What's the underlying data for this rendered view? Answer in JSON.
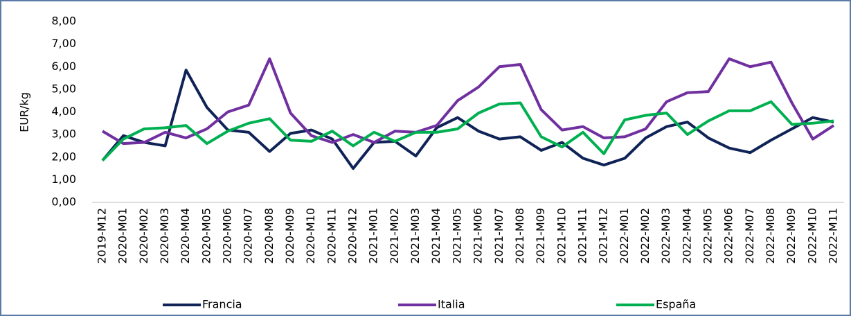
{
  "chart_data": {
    "type": "line",
    "y_label": "EUR/kg",
    "categories": [
      "2019-M12",
      "2020-M01",
      "2020-M02",
      "2020-M03",
      "2020-M04",
      "2020-M05",
      "2020-M06",
      "2020-M07",
      "2020-M08",
      "2020-M09",
      "2020-M10",
      "2020-M11",
      "2020-M12",
      "2021-M01",
      "2021-M02",
      "2021-M03",
      "2021-M04",
      "2021-M05",
      "2021-M06",
      "2021-M07",
      "2021-M08",
      "2021-M09",
      "2021-M10",
      "2021-M11",
      "2021-M12",
      "2022-M01",
      "2022-M02",
      "2022-M03",
      "2022-M04",
      "2022-M05",
      "2022-M06",
      "2022-M07",
      "2022-M08",
      "2022-M09",
      "2022-M10",
      "2022-M11"
    ],
    "series": [
      {
        "name": "Francia",
        "color": "#0f2357",
        "values": [
          1.85,
          2.95,
          2.65,
          2.5,
          5.85,
          4.2,
          3.2,
          3.1,
          2.25,
          3.05,
          3.2,
          2.8,
          1.5,
          2.65,
          2.7,
          2.05,
          3.3,
          3.75,
          3.15,
          2.8,
          2.9,
          2.3,
          2.65,
          1.95,
          1.65,
          1.95,
          2.85,
          3.35,
          3.55,
          2.85,
          2.4,
          2.2,
          2.75,
          3.25,
          3.75,
          3.55
        ]
      },
      {
        "name": "Italia",
        "color": "#7030a0",
        "values": [
          3.15,
          2.6,
          2.65,
          3.1,
          2.85,
          3.25,
          4.0,
          4.3,
          6.35,
          3.95,
          2.95,
          2.65,
          3.0,
          2.65,
          3.15,
          3.1,
          3.4,
          4.5,
          5.1,
          6.0,
          6.1,
          4.1,
          3.2,
          3.35,
          2.85,
          2.9,
          3.25,
          4.45,
          4.85,
          4.9,
          6.35,
          6.0,
          6.2,
          4.4,
          2.8,
          3.4
        ]
      },
      {
        "name": "España",
        "color": "#00b050",
        "values": [
          1.85,
          2.8,
          3.25,
          3.3,
          3.4,
          2.6,
          3.15,
          3.5,
          3.7,
          2.75,
          2.7,
          3.15,
          2.5,
          3.1,
          2.7,
          3.1,
          3.1,
          3.25,
          3.95,
          4.35,
          4.4,
          2.9,
          2.45,
          3.1,
          2.15,
          3.65,
          3.85,
          3.95,
          3.0,
          3.6,
          4.05,
          4.05,
          4.45,
          3.45,
          3.5,
          3.6
        ]
      }
    ],
    "ylim": [
      0,
      8
    ],
    "yticks": [
      {
        "value": 0,
        "label": "0,00"
      },
      {
        "value": 1,
        "label": "1,00"
      },
      {
        "value": 2,
        "label": "2,00"
      },
      {
        "value": 3,
        "label": "3,00"
      },
      {
        "value": 4,
        "label": "4,00"
      },
      {
        "value": 5,
        "label": "5,00"
      },
      {
        "value": 6,
        "label": "6,00"
      },
      {
        "value": 7,
        "label": "7,00"
      },
      {
        "value": 8,
        "label": "8,00"
      }
    ],
    "grid": false,
    "legend": "bottom"
  }
}
